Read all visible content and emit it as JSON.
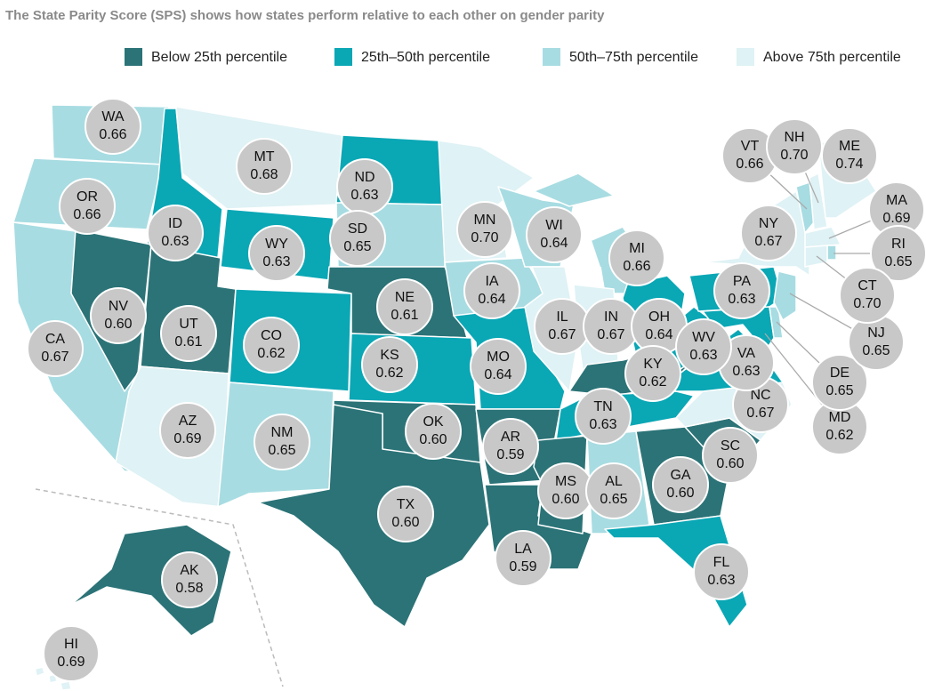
{
  "title": "The State Parity Score (SPS) shows how states perform relative to each other on gender parity",
  "legend": [
    {
      "label": "Below 25th percentile",
      "color": "#2b7377"
    },
    {
      "label": "25th–50th percentile",
      "color": "#0aa7b5"
    },
    {
      "label": "50th–75th percentile",
      "color": "#a7dce2"
    },
    {
      "label": "Above 75th percentile",
      "color": "#dff2f5"
    }
  ],
  "states": [
    {
      "abbr": "WA",
      "score": 0.66,
      "color": "#a7dce2"
    },
    {
      "abbr": "OR",
      "score": 0.66,
      "color": "#a7dce2"
    },
    {
      "abbr": "CA",
      "score": 0.67,
      "color": "#a7dce2"
    },
    {
      "abbr": "ID",
      "score": 0.63,
      "color": "#0aa7b5"
    },
    {
      "abbr": "NV",
      "score": 0.6,
      "score_label": "0.60",
      "color": "#2b7377"
    },
    {
      "abbr": "MT",
      "score": 0.68,
      "color": "#dff2f5"
    },
    {
      "abbr": "WY",
      "score": 0.63,
      "color": "#0aa7b5"
    },
    {
      "abbr": "UT",
      "score": 0.61,
      "color": "#2b7377"
    },
    {
      "abbr": "AZ",
      "score": 0.69,
      "color": "#dff2f5"
    },
    {
      "abbr": "CO",
      "score": 0.62,
      "color": "#0aa7b5"
    },
    {
      "abbr": "NM",
      "score": 0.65,
      "color": "#a7dce2"
    },
    {
      "abbr": "ND",
      "score": 0.63,
      "color": "#0aa7b5"
    },
    {
      "abbr": "SD",
      "score": 0.65,
      "color": "#a7dce2"
    },
    {
      "abbr": "NE",
      "score": 0.61,
      "color": "#2b7377"
    },
    {
      "abbr": "KS",
      "score": 0.62,
      "color": "#0aa7b5"
    },
    {
      "abbr": "OK",
      "score": 0.6,
      "score_label": "0.60",
      "color": "#2b7377"
    },
    {
      "abbr": "TX",
      "score": 0.6,
      "score_label": "0.60",
      "color": "#2b7377"
    },
    {
      "abbr": "MN",
      "score": 0.7,
      "score_label": "0.70",
      "color": "#dff2f5"
    },
    {
      "abbr": "IA",
      "score": 0.64,
      "color": "#a7dce2"
    },
    {
      "abbr": "MO",
      "score": 0.64,
      "color": "#0aa7b5"
    },
    {
      "abbr": "AR",
      "score": 0.59,
      "color": "#2b7377"
    },
    {
      "abbr": "LA",
      "score": 0.59,
      "color": "#2b7377"
    },
    {
      "abbr": "WI",
      "score": 0.64,
      "color": "#a7dce2"
    },
    {
      "abbr": "IL",
      "score": 0.67,
      "color": "#dff2f5"
    },
    {
      "abbr": "MI",
      "score": 0.66,
      "color": "#a7dce2"
    },
    {
      "abbr": "IN",
      "score": 0.67,
      "color": "#dff2f5"
    },
    {
      "abbr": "OH",
      "score": 0.64,
      "color": "#0aa7b5"
    },
    {
      "abbr": "KY",
      "score": 0.62,
      "color": "#2b7377"
    },
    {
      "abbr": "TN",
      "score": 0.63,
      "color": "#0aa7b5"
    },
    {
      "abbr": "MS",
      "score": 0.6,
      "score_label": "0.60",
      "color": "#2b7377"
    },
    {
      "abbr": "AL",
      "score": 0.65,
      "color": "#a7dce2"
    },
    {
      "abbr": "GA",
      "score": 0.6,
      "score_label": "0.60",
      "color": "#2b7377"
    },
    {
      "abbr": "FL",
      "score": 0.63,
      "color": "#0aa7b5"
    },
    {
      "abbr": "SC",
      "score": 0.6,
      "score_label": "0.60",
      "color": "#2b7377"
    },
    {
      "abbr": "NC",
      "score": 0.67,
      "color": "#dff2f5"
    },
    {
      "abbr": "VA",
      "score": 0.63,
      "color": "#0aa7b5"
    },
    {
      "abbr": "WV",
      "score": 0.63,
      "color": "#0aa7b5"
    },
    {
      "abbr": "PA",
      "score": 0.63,
      "color": "#0aa7b5"
    },
    {
      "abbr": "NY",
      "score": 0.67,
      "color": "#dff2f5"
    },
    {
      "abbr": "MD",
      "score": 0.62,
      "color": "#0aa7b5"
    },
    {
      "abbr": "DE",
      "score": 0.65,
      "color": "#a7dce2"
    },
    {
      "abbr": "NJ",
      "score": 0.65,
      "color": "#a7dce2"
    },
    {
      "abbr": "VT",
      "score": 0.66,
      "color": "#a7dce2"
    },
    {
      "abbr": "NH",
      "score": 0.7,
      "score_label": "0.70",
      "color": "#dff2f5"
    },
    {
      "abbr": "ME",
      "score": 0.74,
      "color": "#dff2f5"
    },
    {
      "abbr": "MA",
      "score": 0.69,
      "color": "#dff2f5"
    },
    {
      "abbr": "RI",
      "score": 0.65,
      "color": "#a7dce2"
    },
    {
      "abbr": "CT",
      "score": 0.7,
      "score_label": "0.70",
      "color": "#dff2f5"
    },
    {
      "abbr": "AK",
      "score": 0.58,
      "color": "#2b7377"
    },
    {
      "abbr": "HI",
      "score": 0.69,
      "color": "#dff2f5"
    }
  ]
}
